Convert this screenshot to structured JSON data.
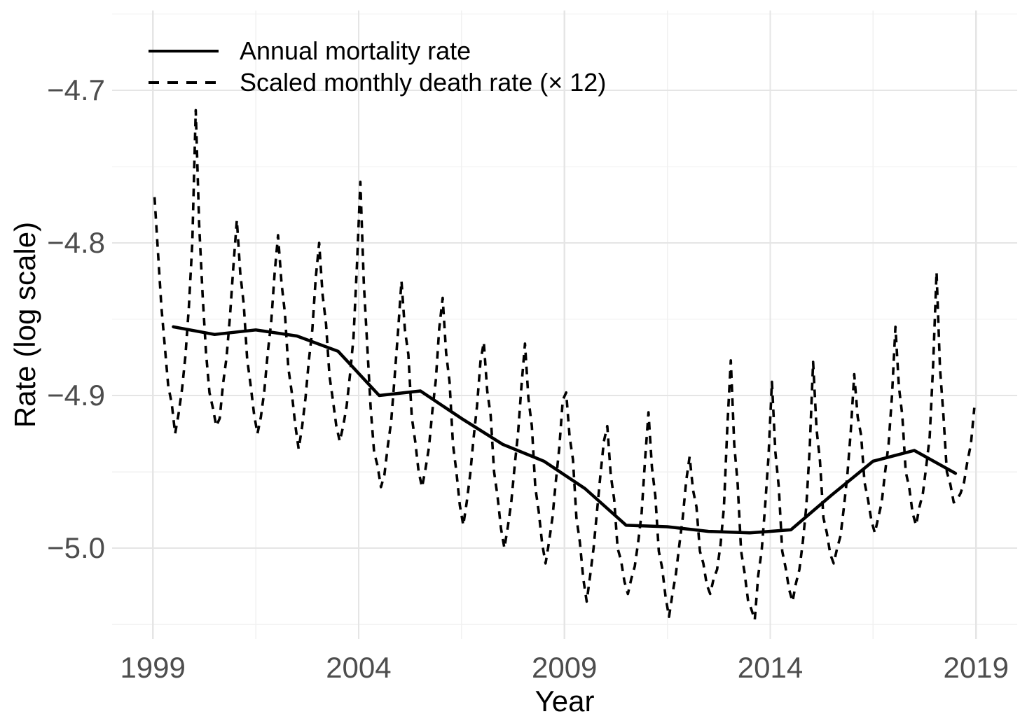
{
  "figure": {
    "background": "#FFFFFF",
    "tick_label_color": "#4D4D4D",
    "title_color": "#000000",
    "line_color": "#000000",
    "grid_major_color": "#E5E5E5",
    "grid_minor_color": "#F1F1F1"
  },
  "axes": {
    "x_title": "Year",
    "y_title": "Rate (log scale)"
  },
  "legend": {
    "items": [
      {
        "label": "Annual mortality rate",
        "style": "solid"
      },
      {
        "label": "Scaled monthly death rate (× 12)",
        "style": "dashed"
      }
    ]
  },
  "chart_data": {
    "type": "line",
    "title": "",
    "xlabel": "Year",
    "ylabel": "Rate (log scale)",
    "grid": "major+minor",
    "legend_position": "inside top-left",
    "xlim": [
      1998.01,
      2020.0
    ],
    "ylim": [
      -5.0596,
      -4.6477
    ],
    "x_ticks": [
      {
        "value": 1999,
        "label": "1999"
      },
      {
        "value": 2004,
        "label": "2004"
      },
      {
        "value": 2009,
        "label": "2009"
      },
      {
        "value": 2014,
        "label": "2014"
      },
      {
        "value": 2019,
        "label": "2019"
      }
    ],
    "x_minor_ticks": [
      2001.5,
      2006.5,
      2011.5,
      2016.5
    ],
    "y_ticks": [
      {
        "value": -4.7,
        "label": "−4.7"
      },
      {
        "value": -4.8,
        "label": "−4.8"
      },
      {
        "value": -4.9,
        "label": "−4.9"
      },
      {
        "value": -5.0,
        "label": "−5.0"
      }
    ],
    "y_minor_ticks": [
      -4.65,
      -4.75,
      -4.85,
      -4.95,
      -5.05
    ],
    "series": [
      {
        "name": "Annual mortality rate",
        "linestyle": "solid",
        "color": "#000000",
        "frequency": "annual",
        "x_offset": 0.5,
        "years": [
          1999,
          2000,
          2001,
          2002,
          2003,
          2004,
          2005,
          2006,
          2007,
          2008,
          2009,
          2010,
          2011,
          2012,
          2013,
          2014,
          2015,
          2016,
          2017,
          2018
        ],
        "values": [
          -4.855,
          -4.86,
          -4.857,
          -4.861,
          -4.871,
          -4.9,
          -4.897,
          -4.915,
          -4.932,
          -4.943,
          -4.961,
          -4.985,
          -4.986,
          -4.989,
          -4.99,
          -4.988,
          -4.965,
          -4.943,
          -4.936,
          -4.951
        ]
      },
      {
        "name": "Scaled monthly death rate (× 12)",
        "linestyle": "dashed",
        "color": "#000000",
        "frequency": "monthly",
        "start_year": 1999,
        "values": [
          -4.77,
          -4.806,
          -4.842,
          -4.868,
          -4.894,
          -4.905,
          -4.925,
          -4.912,
          -4.896,
          -4.874,
          -4.842,
          -4.8,
          -4.713,
          -4.788,
          -4.834,
          -4.872,
          -4.898,
          -4.908,
          -4.92,
          -4.915,
          -4.892,
          -4.875,
          -4.848,
          -4.815,
          -4.785,
          -4.82,
          -4.84,
          -4.876,
          -4.893,
          -4.912,
          -4.925,
          -4.914,
          -4.897,
          -4.872,
          -4.852,
          -4.82,
          -4.795,
          -4.826,
          -4.846,
          -4.882,
          -4.898,
          -4.919,
          -4.935,
          -4.921,
          -4.902,
          -4.877,
          -4.857,
          -4.823,
          -4.8,
          -4.834,
          -4.853,
          -4.887,
          -4.903,
          -4.92,
          -4.93,
          -4.92,
          -4.907,
          -4.886,
          -4.862,
          -4.815,
          -4.76,
          -4.826,
          -4.867,
          -4.908,
          -4.937,
          -4.946,
          -4.96,
          -4.952,
          -4.933,
          -4.917,
          -4.888,
          -4.858,
          -4.825,
          -4.857,
          -4.873,
          -4.914,
          -4.93,
          -4.95,
          -4.96,
          -4.948,
          -4.934,
          -4.91,
          -4.89,
          -4.856,
          -4.836,
          -4.872,
          -4.891,
          -4.932,
          -4.95,
          -4.972,
          -4.985,
          -4.97,
          -4.952,
          -4.928,
          -4.907,
          -4.878,
          -4.865,
          -4.897,
          -4.913,
          -4.95,
          -4.966,
          -4.987,
          -5.0,
          -4.986,
          -4.97,
          -4.946,
          -4.924,
          -4.893,
          -4.866,
          -4.902,
          -4.92,
          -4.96,
          -4.976,
          -4.997,
          -5.01,
          -4.996,
          -4.98,
          -4.956,
          -4.934,
          -4.903,
          -4.898,
          -4.927,
          -4.942,
          -4.98,
          -4.996,
          -5.02,
          -5.035,
          -5.018,
          -5.0,
          -4.976,
          -4.952,
          -4.93,
          -4.92,
          -4.952,
          -4.968,
          -5.0,
          -5.008,
          -5.022,
          -5.03,
          -5.02,
          -5.012,
          -4.996,
          -4.977,
          -4.942,
          -4.911,
          -4.947,
          -4.966,
          -5.002,
          -5.013,
          -5.032,
          -5.045,
          -5.03,
          -5.017,
          -4.998,
          -4.98,
          -4.956,
          -4.94,
          -4.962,
          -4.973,
          -5.002,
          -5.01,
          -5.024,
          -5.03,
          -5.02,
          -5.014,
          -4.998,
          -4.973,
          -4.92,
          -4.877,
          -4.932,
          -4.958,
          -5.002,
          -5.016,
          -5.034,
          -5.04,
          -5.047,
          -5.018,
          -5.002,
          -4.973,
          -4.94,
          -4.891,
          -4.937,
          -4.96,
          -5.002,
          -5.013,
          -5.027,
          -5.035,
          -5.023,
          -5.014,
          -4.996,
          -4.973,
          -4.935,
          -4.878,
          -4.922,
          -4.943,
          -4.98,
          -4.99,
          -5.004,
          -5.01,
          -5.0,
          -4.992,
          -4.973,
          -4.952,
          -4.923,
          -4.886,
          -4.914,
          -4.926,
          -4.957,
          -4.968,
          -4.982,
          -4.99,
          -4.98,
          -4.97,
          -4.95,
          -4.932,
          -4.9,
          -4.855,
          -4.894,
          -4.913,
          -4.95,
          -4.96,
          -4.977,
          -4.985,
          -4.973,
          -4.964,
          -4.946,
          -4.927,
          -4.88,
          -4.819,
          -4.882,
          -4.913,
          -4.95,
          -4.958,
          -4.97,
          -4.968,
          -4.964,
          -4.957,
          -4.943,
          -4.932,
          -4.908
        ]
      }
    ]
  }
}
